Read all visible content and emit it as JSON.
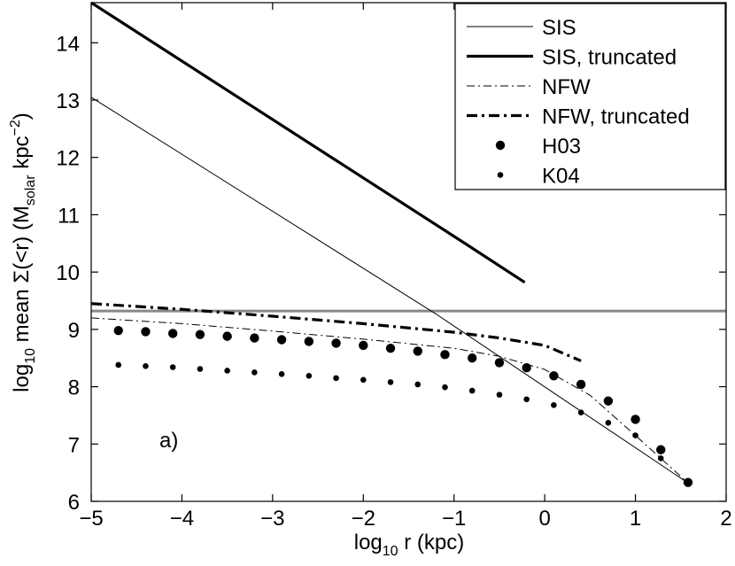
{
  "chart_data": {
    "type": "line",
    "title": "",
    "panel_label": "a)",
    "xlabel": {
      "pre": "log",
      "sub": "10",
      "post": " r (kpc)"
    },
    "ylabel": {
      "pre": "log",
      "sub": "10",
      "mid": " mean Σ(<r) (M",
      "sub2": "solar",
      "mid2": " kpc",
      "sup": "−2",
      "post": ")"
    },
    "xlim": [
      -5,
      2
    ],
    "ylim": [
      6,
      14.7
    ],
    "xticks": [
      -5,
      -4,
      -3,
      -2,
      -1,
      0,
      1,
      2
    ],
    "xtick_labels": [
      "−5",
      "−4",
      "−3",
      "−2",
      "−1",
      "0",
      "1",
      "2"
    ],
    "yticks": [
      6,
      7,
      8,
      9,
      10,
      11,
      12,
      13,
      14
    ],
    "ytick_labels": [
      "6",
      "7",
      "8",
      "9",
      "10",
      "11",
      "12",
      "13",
      "14"
    ],
    "grid": false,
    "legend_position": "top-right",
    "hline": {
      "y": 9.32,
      "color": "#888888"
    },
    "series": [
      {
        "name": "SIS",
        "style": "solid-thin",
        "x": [
          -5,
          -1.2,
          1.58
        ],
        "y": [
          13.05,
          9.27,
          6.32
        ]
      },
      {
        "name": "SIS, truncated",
        "style": "solid-thick",
        "x": [
          -5,
          -0.85,
          -0.22
        ],
        "y": [
          14.7,
          10.47,
          9.82
        ]
      },
      {
        "name": "NFW",
        "style": "dashdot-thin",
        "x": [
          -5,
          -4,
          -3,
          -2,
          -1,
          -0.5,
          0,
          0.5,
          1,
          1.58
        ],
        "y": [
          9.2,
          9.1,
          8.97,
          8.83,
          8.67,
          8.53,
          8.3,
          7.85,
          7.15,
          6.32
        ]
      },
      {
        "name": "NFW, truncated",
        "style": "dashdot-thick",
        "x": [
          -5,
          -4,
          -3,
          -2,
          -1,
          -0.5,
          0,
          0.4
        ],
        "y": [
          9.45,
          9.35,
          9.23,
          9.1,
          8.95,
          8.85,
          8.72,
          8.45
        ]
      },
      {
        "name": "H03",
        "style": "marker-large",
        "x": [
          -4.7,
          -4.4,
          -4.1,
          -3.8,
          -3.5,
          -3.2,
          -2.9,
          -2.6,
          -2.3,
          -2.0,
          -1.7,
          -1.4,
          -1.1,
          -0.8,
          -0.5,
          -0.2,
          0.1,
          0.4,
          0.7,
          1.0,
          1.28,
          1.58
        ],
        "y": [
          8.98,
          8.96,
          8.93,
          8.91,
          8.88,
          8.85,
          8.82,
          8.79,
          8.76,
          8.72,
          8.67,
          8.62,
          8.56,
          8.5,
          8.42,
          8.33,
          8.19,
          8.04,
          7.75,
          7.43,
          6.9,
          6.33
        ]
      },
      {
        "name": "K04",
        "style": "marker-small",
        "x": [
          -4.7,
          -4.4,
          -4.1,
          -3.8,
          -3.5,
          -3.2,
          -2.9,
          -2.6,
          -2.3,
          -2.0,
          -1.7,
          -1.4,
          -1.1,
          -0.8,
          -0.5,
          -0.2,
          0.1,
          0.4,
          0.7,
          1.0,
          1.28,
          1.58
        ],
        "y": [
          8.38,
          8.36,
          8.34,
          8.31,
          8.28,
          8.25,
          8.22,
          8.19,
          8.15,
          8.12,
          8.08,
          8.04,
          7.99,
          7.93,
          7.86,
          7.78,
          7.68,
          7.55,
          7.37,
          7.15,
          6.75,
          6.32
        ]
      }
    ]
  }
}
